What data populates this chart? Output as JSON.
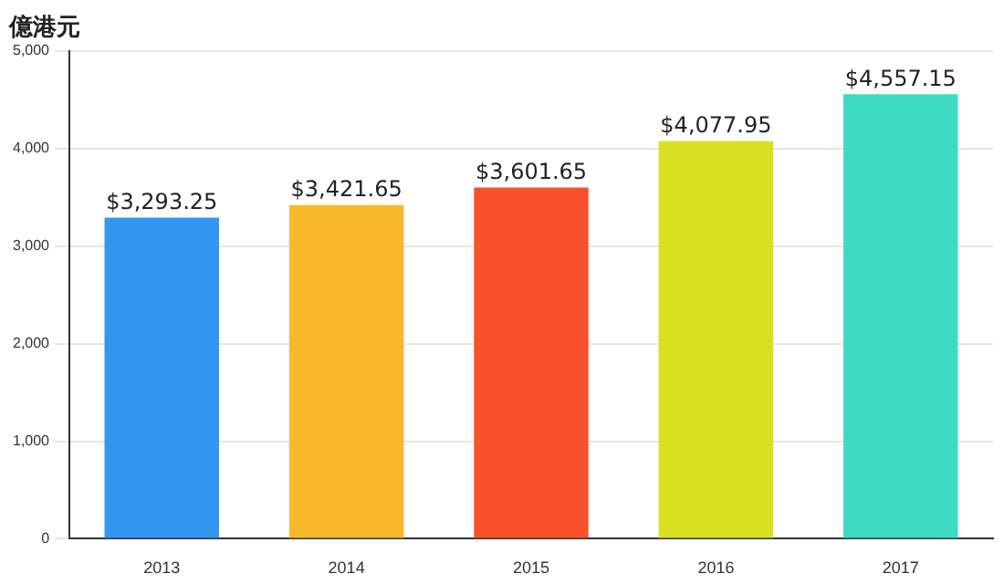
{
  "chart_data": {
    "type": "bar",
    "ylabel": "億港元",
    "categories": [
      "2013",
      "2014",
      "2015",
      "2016",
      "2017"
    ],
    "values": [
      3293.25,
      3421.65,
      3601.65,
      4077.95,
      4557.15
    ],
    "colors": [
      "#3396ee",
      "#f7b92b",
      "#f9522b",
      "#d9e021",
      "#3ddcc2"
    ],
    "value_labels": [
      "$3,293.25",
      "$3,421.65",
      "$3,601.65",
      "$4,077.95",
      "$4,557.15"
    ],
    "ylim": [
      0,
      5000
    ],
    "yticks": [
      {
        "value": 0,
        "label": "0"
      },
      {
        "value": 1000,
        "label": "1,000"
      },
      {
        "value": 2000,
        "label": "2,000"
      },
      {
        "value": 3000,
        "label": "3,000"
      },
      {
        "value": 4000,
        "label": "4,000"
      },
      {
        "value": 5000,
        "label": "5,000"
      }
    ],
    "grid": "y"
  }
}
